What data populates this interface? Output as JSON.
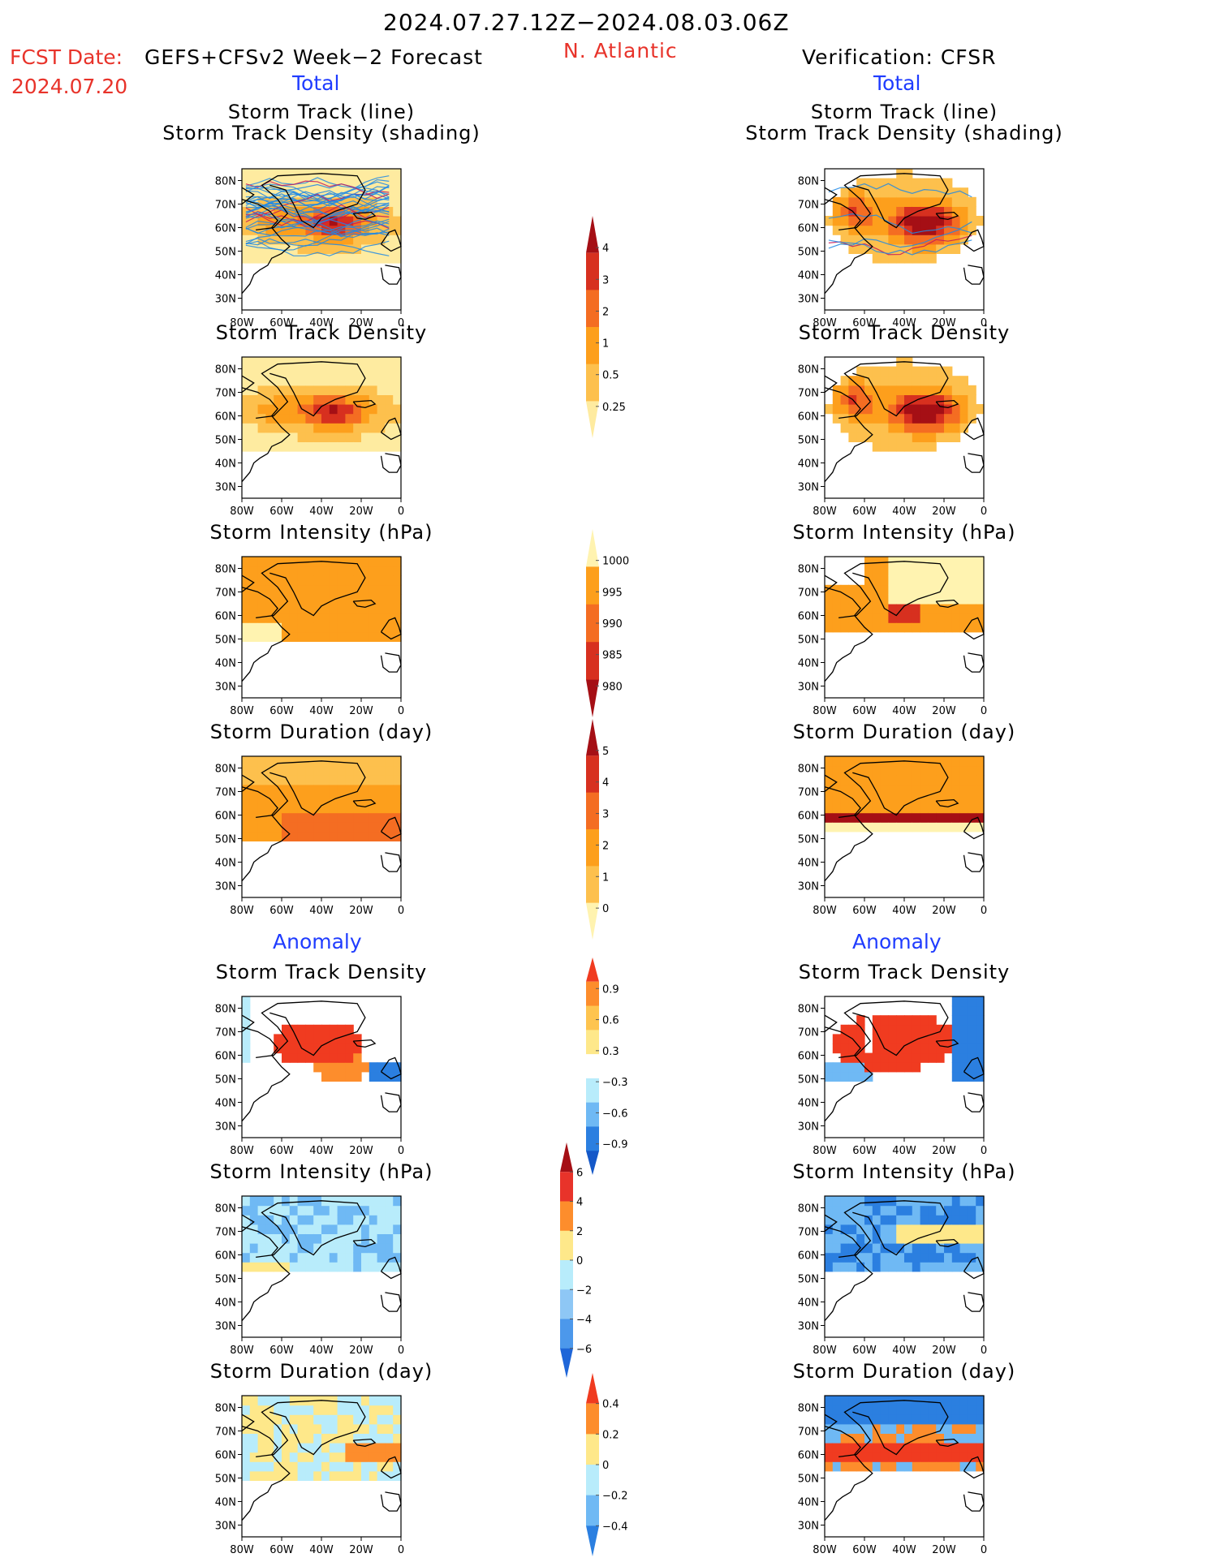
{
  "header": {
    "title": "2024.07.27.12Z−2024.08.03.06Z",
    "fcst_label": "FCST Date:",
    "fcst_date": "2024.07.20",
    "model": "GEFS+CFSv2 Week−2 Forecast",
    "region": "N. Atlantic",
    "verification": "Verification: CFSR",
    "total_left": "Total",
    "total_right": "Total",
    "anomaly_left": "Anomaly",
    "anomaly_right": "Anomaly"
  },
  "colors": {
    "red_text": "#e8332a",
    "blue_text": "#1f3cff",
    "black_text": "#000000"
  },
  "chart_data": {
    "type": "heatmap",
    "map": {
      "x_ticks": [
        "80W",
        "60W",
        "40W",
        "20W",
        "0"
      ],
      "y_ticks": [
        "80N",
        "70N",
        "60N",
        "50N",
        "40N",
        "30N"
      ],
      "lon_range": [
        -80,
        0
      ],
      "lat_range": [
        25,
        85
      ]
    },
    "panels": [
      {
        "id": "fc-track",
        "column": "forecast",
        "title_lines": [
          "Storm Track (line)",
          "Storm Track Density (shading)"
        ],
        "field": "track",
        "tracks": true
      },
      {
        "id": "fc-density",
        "column": "forecast",
        "title_lines": [
          "Storm Track Density"
        ],
        "field": "density"
      },
      {
        "id": "fc-intensity",
        "column": "forecast",
        "title_lines": [
          "Storm Intensity (hPa)"
        ],
        "field": "intensity"
      },
      {
        "id": "fc-duration",
        "column": "forecast",
        "title_lines": [
          "Storm Duration (day)"
        ],
        "field": "duration"
      },
      {
        "id": "fc-density-anom",
        "column": "forecast",
        "title_lines": [
          "Storm Track Density"
        ],
        "field": "density_anom"
      },
      {
        "id": "fc-intensity-anom",
        "column": "forecast",
        "title_lines": [
          "Storm Intensity (hPa)"
        ],
        "field": "intensity_anom"
      },
      {
        "id": "fc-duration-anom",
        "column": "forecast",
        "title_lines": [
          "Storm Duration (day)"
        ],
        "field": "duration_anom"
      },
      {
        "id": "vf-track",
        "column": "verification",
        "title_lines": [
          "Storm Track (line)",
          "Storm Track Density (shading)"
        ],
        "field": "track",
        "tracks": true
      },
      {
        "id": "vf-density",
        "column": "verification",
        "title_lines": [
          "Storm Track Density"
        ],
        "field": "density"
      },
      {
        "id": "vf-intensity",
        "column": "verification",
        "title_lines": [
          "Storm Intensity (hPa)"
        ],
        "field": "intensity"
      },
      {
        "id": "vf-duration",
        "column": "verification",
        "title_lines": [
          "Storm Duration (day)"
        ],
        "field": "duration"
      },
      {
        "id": "vf-density-anom",
        "column": "verification",
        "title_lines": [
          "Storm Track Density"
        ],
        "field": "density_anom"
      },
      {
        "id": "vf-intensity-anom",
        "column": "verification",
        "title_lines": [
          "Storm Intensity (hPa)"
        ],
        "field": "intensity_anom"
      },
      {
        "id": "vf-duration-anom",
        "column": "verification",
        "title_lines": [
          "Storm Duration (day)"
        ],
        "field": "duration_anom"
      }
    ],
    "colorbars": [
      {
        "name": "track-density",
        "labels": [
          "4",
          "3",
          "2",
          "1",
          "0.5",
          "0.25"
        ],
        "colors": [
          "#a50f15",
          "#d7301f",
          "#f46d22",
          "#fd9f1c",
          "#fdc04d",
          "#feeba0"
        ]
      },
      {
        "name": "intensity",
        "labels": [
          "1000",
          "995",
          "990",
          "985",
          "980"
        ],
        "colors": [
          "#fff3b0",
          "#fd9f1c",
          "#f46d22",
          "#d7301f",
          "#a50f15"
        ]
      },
      {
        "name": "duration",
        "labels": [
          "5",
          "4",
          "3",
          "2",
          "1",
          "0"
        ],
        "colors": [
          "#a50f15",
          "#d7301f",
          "#f46d22",
          "#fd9f1c",
          "#fdc04d",
          "#fff3b0"
        ]
      },
      {
        "name": "density-anomaly",
        "labels": [
          "0.9",
          "0.6",
          "0.3",
          "−0.3",
          "−0.6",
          "−0.9"
        ],
        "colors": [
          "#f03b20",
          "#fd8d2c",
          "#fec44f",
          "#fee88a",
          "#ffffff",
          "#b8ecfb",
          "#6fb9f4",
          "#2b7fe0",
          "#1558c8"
        ]
      },
      {
        "name": "intensity-anomaly",
        "labels": [
          "6",
          "4",
          "2",
          "0",
          "−2",
          "−4",
          "−6"
        ],
        "colors": [
          "#a50f15",
          "#e8332a",
          "#fd8d2c",
          "#fee88a",
          "#b8ecfb",
          "#8ec7f5",
          "#4c98eb",
          "#1f66d8"
        ]
      },
      {
        "name": "duration-anomaly",
        "labels": [
          "0.4",
          "0.2",
          "0",
          "−0.2",
          "−0.4"
        ],
        "colors": [
          "#f03b20",
          "#fd8d2c",
          "#fee88a",
          "#b8ecfb",
          "#6fb9f4",
          "#2b7fe0"
        ]
      }
    ]
  }
}
